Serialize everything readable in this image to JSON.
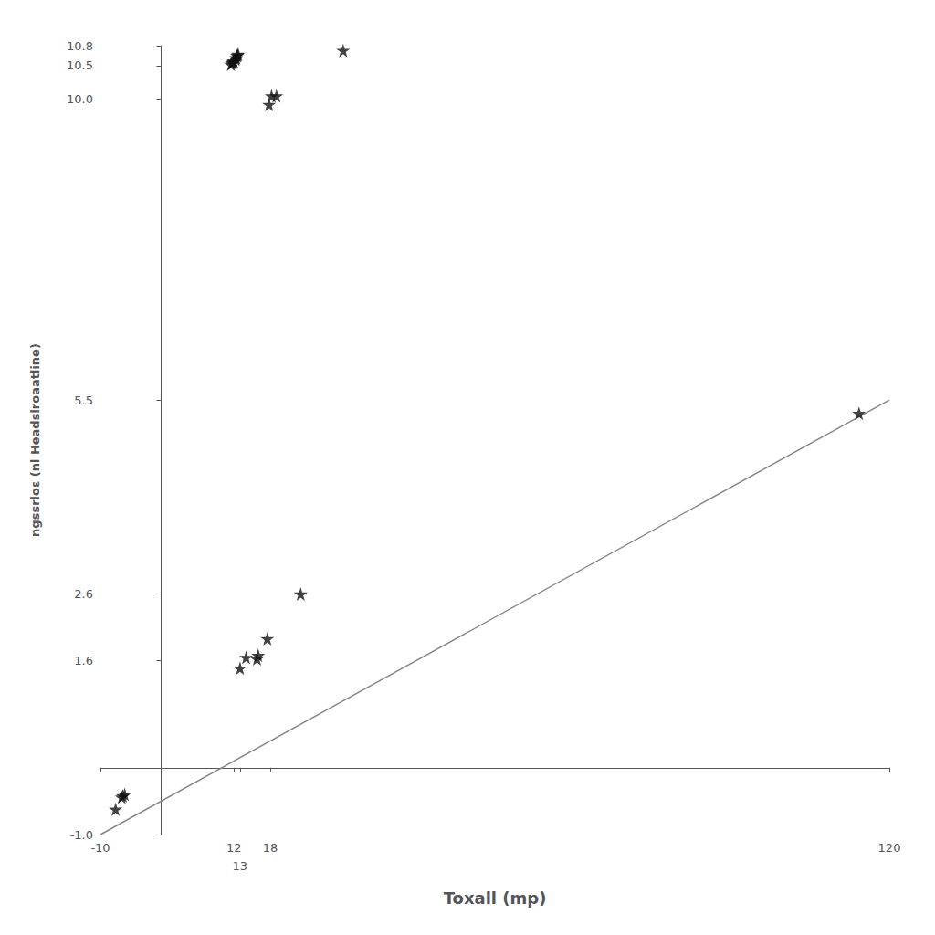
{
  "chart_data": {
    "type": "scatter",
    "xlabel": "Toxall (mp)",
    "ylabel": "ngssrloɛ (nl Headslroaatline)",
    "xlim": [
      -10,
      120
    ],
    "ylim": [
      -1.0,
      10.8
    ],
    "xticks": [
      -10,
      12,
      18,
      13,
      120
    ],
    "yticks": [
      {
        "value": -1.0,
        "label": "-1.0"
      },
      10.5,
      1.6,
      {
        "value": 10.0,
        "label": "10.0"
      },
      2.6,
      10.8,
      5.5
    ],
    "grid": false,
    "series": [
      {
        "type": "line",
        "color": "#888888",
        "x": [
          -10,
          120
        ],
        "values": [
          -1.0,
          5.5
        ]
      },
      {
        "type": "scatter",
        "color": "#111111",
        "marker": "star",
        "x": [
          -7.5,
          -6.5,
          -6.3,
          -6.0,
          11.5,
          11.7,
          11.8,
          11.9,
          12.0,
          12.3,
          12.4,
          12.5,
          12.6,
          12.7,
          13.0,
          14.0,
          15.8,
          16.0,
          17.5,
          17.8,
          18.2,
          19.0,
          23.0,
          30.0,
          115.0
        ],
        "values": [
          -0.62,
          -0.44,
          -0.42,
          -0.4,
          10.52,
          10.54,
          10.55,
          10.56,
          10.57,
          10.6,
          10.62,
          10.65,
          10.66,
          10.67,
          1.49,
          1.65,
          1.63,
          1.68,
          1.93,
          9.92,
          10.05,
          10.05,
          2.6,
          10.73,
          5.3
        ]
      }
    ]
  }
}
